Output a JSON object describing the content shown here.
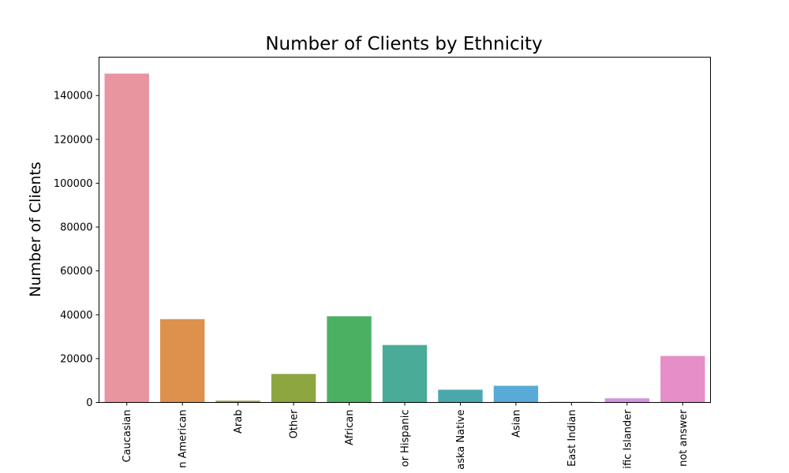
{
  "chart_data": {
    "type": "bar",
    "title": "Number of Clients by Ethnicity",
    "xlabel": "",
    "ylabel": "Number of Clients",
    "categories": [
      "Caucasian",
      "n American",
      "Arab",
      "Other",
      "African",
      "or Hispanic",
      "aska Native",
      "Asian",
      "East Indian",
      "ific Islander",
      "not answer"
    ],
    "values": [
      150000,
      38000,
      800,
      13000,
      39300,
      26200,
      5800,
      7600,
      300,
      1900,
      21200
    ],
    "colors": [
      "#e8959f",
      "#dd914d",
      "#9e9d3c",
      "#8da640",
      "#4bb062",
      "#4aab98",
      "#49a8ad",
      "#58aad8",
      "#a79fd9",
      "#d493e1",
      "#e68ec7"
    ],
    "ylim": [
      0,
      157500
    ],
    "yticks": [
      0,
      20000,
      40000,
      60000,
      80000,
      100000,
      120000,
      140000
    ],
    "grid": false
  }
}
